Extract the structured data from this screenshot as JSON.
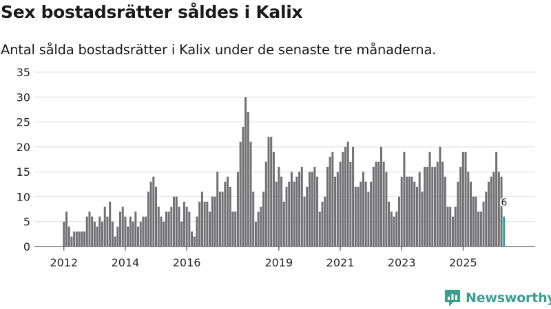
{
  "title": "Sex bostadsrätter såldes i Kalix",
  "subtitle": "Antal sålda bostadsrätter i Kalix under de senaste tre månaderna.",
  "brand": "Newsworthy",
  "colors": {
    "bar": "#707073",
    "highlight": "#2ca59a",
    "grid": "#dddddd",
    "brand": "#3a9e8f"
  },
  "chart_data": {
    "type": "bar",
    "title": "Sex bostadsrätter såldes i Kalix",
    "xlabel": "",
    "ylabel": "",
    "ylim": [
      0,
      35
    ],
    "yticks": [
      0,
      5,
      10,
      15,
      20,
      25,
      30,
      35
    ],
    "xticks": [
      "2012",
      "2014",
      "2016",
      "2019",
      "2021",
      "2023",
      "2025"
    ],
    "first_period": "2012-01",
    "grid": true,
    "highlight_label": "6",
    "values": [
      5,
      7,
      4,
      2,
      3,
      3,
      3,
      3,
      3,
      6,
      7,
      6,
      5,
      4,
      6,
      5,
      8,
      6,
      9,
      5,
      2,
      4,
      7,
      8,
      6,
      4,
      6,
      5,
      7,
      4,
      5,
      6,
      6,
      11,
      13,
      14,
      12,
      8,
      6,
      5,
      7,
      7,
      8,
      10,
      10,
      8,
      5,
      9,
      8,
      7,
      3,
      2,
      6,
      9,
      11,
      9,
      9,
      7,
      10,
      10,
      15,
      11,
      11,
      13,
      14,
      12,
      7,
      7,
      15,
      21,
      24,
      30,
      27,
      21,
      11,
      5,
      7,
      8,
      11,
      17,
      22,
      22,
      19,
      13,
      16,
      14,
      9,
      12,
      13,
      15,
      13,
      14,
      15,
      16,
      10,
      12,
      15,
      15,
      16,
      14,
      7,
      9,
      10,
      16,
      18,
      19,
      14,
      15,
      17,
      19,
      20,
      21,
      17,
      20,
      12,
      12,
      13,
      15,
      13,
      11,
      13,
      16,
      17,
      17,
      20,
      17,
      15,
      9,
      7,
      6,
      7,
      10,
      14,
      19,
      14,
      14,
      14,
      13,
      12,
      15,
      11,
      16,
      16,
      19,
      16,
      16,
      17,
      20,
      17,
      14,
      8,
      8,
      6,
      8,
      13,
      16,
      19,
      19,
      15,
      13,
      10,
      10,
      7,
      7,
      9,
      11,
      13,
      14,
      15,
      19,
      15,
      14,
      6
    ]
  }
}
